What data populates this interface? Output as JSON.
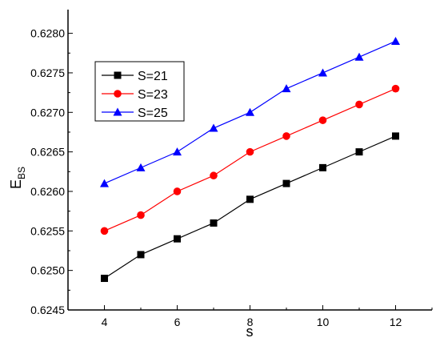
{
  "chart_data": {
    "type": "line",
    "title": "",
    "xlabel": "s",
    "ylabel": "E",
    "ylabel_sub": "BS",
    "xlim": [
      3,
      13
    ],
    "ylim": [
      0.6245,
      0.6283
    ],
    "x_ticks": [
      4,
      6,
      8,
      10,
      12
    ],
    "x_tick_labels": [
      "4",
      "6",
      "8",
      "10",
      "12"
    ],
    "y_ticks": [
      0.6245,
      0.625,
      0.6255,
      0.626,
      0.6265,
      0.627,
      0.6275,
      0.628
    ],
    "y_tick_labels": [
      "0.6245",
      "0.6250",
      "0.6255",
      "0.6260",
      "0.6265",
      "0.6270",
      "0.6275",
      "0.6280"
    ],
    "x": [
      4,
      5,
      6,
      7,
      8,
      9,
      10,
      11,
      12
    ],
    "legend_position": "upper-left",
    "grid": false,
    "series": [
      {
        "name": "S=21",
        "color": "#000000",
        "marker": "square",
        "values": [
          0.6249,
          0.6252,
          0.6254,
          0.6256,
          0.6259,
          0.6261,
          0.6263,
          0.6265,
          0.6267
        ]
      },
      {
        "name": "S=23",
        "color": "#ff0000",
        "marker": "circle",
        "values": [
          0.6255,
          0.6257,
          0.626,
          0.6262,
          0.6265,
          0.6267,
          0.6269,
          0.6271,
          0.6273
        ]
      },
      {
        "name": "S=25",
        "color": "#0000ff",
        "marker": "triangle",
        "values": [
          0.6261,
          0.6263,
          0.6265,
          0.6268,
          0.627,
          0.6273,
          0.6275,
          0.6277,
          0.6279
        ]
      }
    ]
  }
}
